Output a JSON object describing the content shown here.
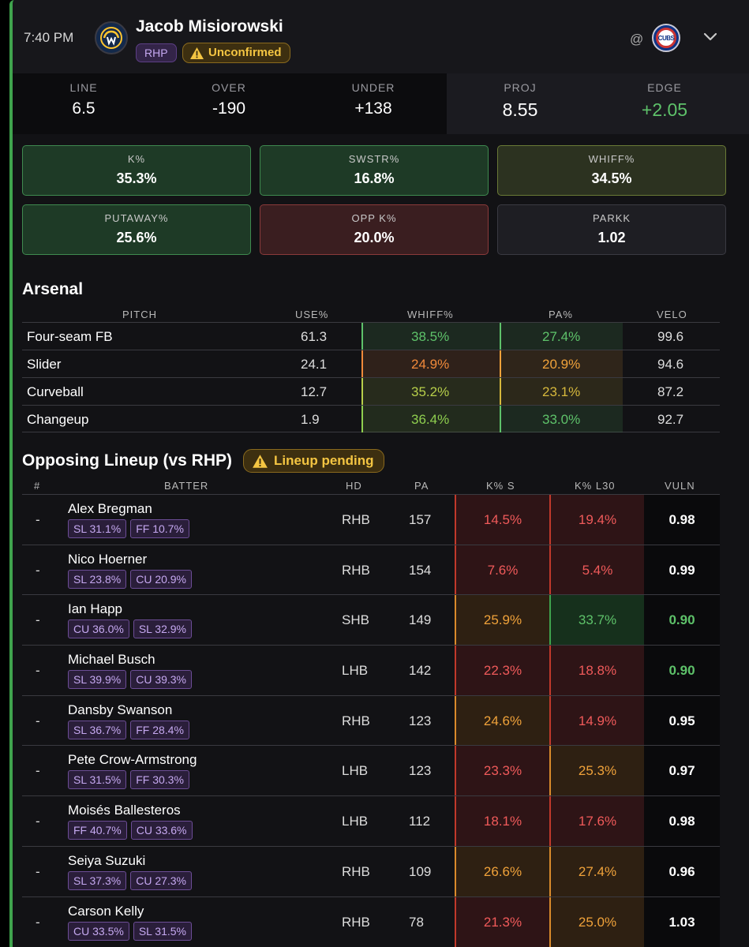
{
  "header": {
    "time": "7:40 PM",
    "team_logo_icon": "brewers-logo-icon",
    "pitcher_name": "Jacob Misiorowski",
    "hand_badge": "RHP",
    "status_badge": "Unconfirmed",
    "at_label": "@",
    "opponent_logo_icon": "cubs-logo-icon",
    "opponent_logo_text": "CUBS",
    "expand_icon": "chevron-down-icon"
  },
  "line_stats": [
    {
      "label": "LINE",
      "value": "6.5"
    },
    {
      "label": "OVER",
      "value": "-190"
    },
    {
      "label": "UNDER",
      "value": "+138"
    },
    {
      "label": "PROJ",
      "value": "8.55"
    },
    {
      "label": "EDGE",
      "value": "+2.05"
    }
  ],
  "metrics": [
    {
      "label": "K%",
      "value": "35.3%",
      "tone": "green"
    },
    {
      "label": "SWSTR%",
      "value": "16.8%",
      "tone": "green"
    },
    {
      "label": "WHIFF%",
      "value": "34.5%",
      "tone": "olive"
    },
    {
      "label": "PUTAWAY%",
      "value": "25.6%",
      "tone": "green"
    },
    {
      "label": "OPP K%",
      "value": "20.0%",
      "tone": "red"
    },
    {
      "label": "PARKK",
      "value": "1.02",
      "tone": "gray"
    }
  ],
  "arsenal": {
    "title": "Arsenal",
    "columns": [
      "PITCH",
      "USE%",
      "WHIFF%",
      "PA%",
      "VELO"
    ],
    "rows": [
      {
        "pitch": "Four-seam FB",
        "use": "61.3",
        "whiff": "38.5%",
        "pa": "27.4%",
        "velo": "99.6",
        "whiff_color": "#5ec26a",
        "pa_color": "#5ec26a"
      },
      {
        "pitch": "Slider",
        "use": "24.1",
        "whiff": "24.9%",
        "pa": "20.9%",
        "velo": "94.6",
        "whiff_color": "#f0893a",
        "pa_color": "#f0a23a"
      },
      {
        "pitch": "Curveball",
        "use": "12.7",
        "whiff": "35.2%",
        "pa": "23.1%",
        "velo": "87.2",
        "whiff_color": "#b7cf4a",
        "pa_color": "#d6b83c"
      },
      {
        "pitch": "Changeup",
        "use": "1.9",
        "whiff": "36.4%",
        "pa": "33.0%",
        "velo": "92.7",
        "whiff_color": "#8fcf4f",
        "pa_color": "#5ec26a"
      }
    ]
  },
  "lineup": {
    "title": "Opposing Lineup (vs RHP)",
    "status_badge": "Lineup pending",
    "columns": [
      "#",
      "BATTER",
      "HD",
      "PA",
      "K% S",
      "K% L30",
      "VULN"
    ],
    "rows": [
      {
        "order": "-",
        "name": "Alex Bregman",
        "chips": [
          "SL 31.1%",
          "FF 10.7%"
        ],
        "hd": "RHB",
        "pa": "157",
        "ks": "14.5%",
        "kl": "19.4%",
        "vuln": "0.98",
        "ks_tone": "red",
        "kl_tone": "red",
        "vuln_color": "#ffffff"
      },
      {
        "order": "-",
        "name": "Nico Hoerner",
        "chips": [
          "SL 23.8%",
          "CU 20.9%"
        ],
        "hd": "RHB",
        "pa": "154",
        "ks": "7.6%",
        "kl": "5.4%",
        "vuln": "0.99",
        "ks_tone": "red",
        "kl_tone": "red",
        "vuln_color": "#ffffff"
      },
      {
        "order": "-",
        "name": "Ian Happ",
        "chips": [
          "CU 36.0%",
          "SL 32.9%"
        ],
        "hd": "SHB",
        "pa": "149",
        "ks": "25.9%",
        "kl": "33.7%",
        "vuln": "0.90",
        "ks_tone": "orange",
        "kl_tone": "green",
        "vuln_color": "#5ec26a"
      },
      {
        "order": "-",
        "name": "Michael Busch",
        "chips": [
          "SL 39.9%",
          "CU 39.3%"
        ],
        "hd": "LHB",
        "pa": "142",
        "ks": "22.3%",
        "kl": "18.8%",
        "vuln": "0.90",
        "ks_tone": "red",
        "kl_tone": "red",
        "vuln_color": "#5ec26a"
      },
      {
        "order": "-",
        "name": "Dansby Swanson",
        "chips": [
          "SL 36.7%",
          "FF 28.4%"
        ],
        "hd": "RHB",
        "pa": "123",
        "ks": "24.6%",
        "kl": "14.9%",
        "vuln": "0.95",
        "ks_tone": "orange",
        "kl_tone": "red",
        "vuln_color": "#ffffff"
      },
      {
        "order": "-",
        "name": "Pete Crow-Armstrong",
        "chips": [
          "SL 31.5%",
          "FF 30.3%"
        ],
        "hd": "LHB",
        "pa": "123",
        "ks": "23.3%",
        "kl": "25.3%",
        "vuln": "0.97",
        "ks_tone": "red",
        "kl_tone": "orange",
        "vuln_color": "#ffffff"
      },
      {
        "order": "-",
        "name": "Moisés Ballesteros",
        "chips": [
          "FF 40.7%",
          "CU 33.6%"
        ],
        "hd": "LHB",
        "pa": "112",
        "ks": "18.1%",
        "kl": "17.6%",
        "vuln": "0.98",
        "ks_tone": "red",
        "kl_tone": "red",
        "vuln_color": "#ffffff"
      },
      {
        "order": "-",
        "name": "Seiya Suzuki",
        "chips": [
          "SL 37.3%",
          "CU 27.3%"
        ],
        "hd": "RHB",
        "pa": "109",
        "ks": "26.6%",
        "kl": "27.4%",
        "vuln": "0.96",
        "ks_tone": "orange",
        "kl_tone": "orange",
        "vuln_color": "#ffffff"
      },
      {
        "order": "-",
        "name": "Carson Kelly",
        "chips": [
          "CU 33.5%",
          "SL 31.5%"
        ],
        "hd": "RHB",
        "pa": "78",
        "ks": "21.3%",
        "kl": "25.0%",
        "vuln": "1.03",
        "ks_tone": "red",
        "kl_tone": "orange",
        "vuln_color": "#ffffff"
      }
    ]
  },
  "colors": {
    "accent_green": "#5ec26a",
    "tone_red_bg": "#2e1416",
    "tone_red_fg": "#f05a5a",
    "tone_orange_bg": "#2e2012",
    "tone_orange_fg": "#f0a23a",
    "tone_green_bg": "#16301c",
    "tone_green_fg": "#5ec26a"
  }
}
